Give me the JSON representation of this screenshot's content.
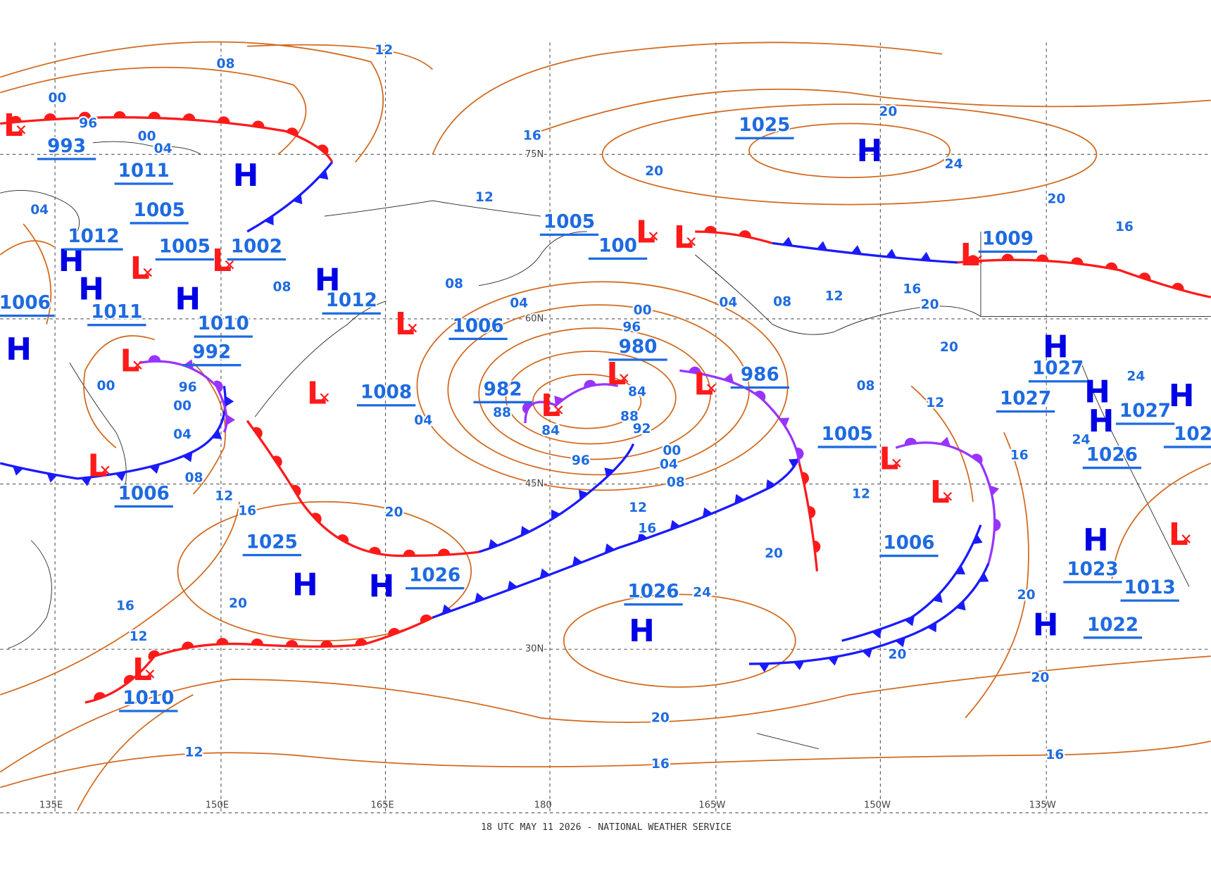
{
  "footer": "18 UTC MAY 11 2026 - NATIONAL WEATHER SERVICE",
  "longitude_labels": [
    "135E",
    "150E",
    "165E",
    "180",
    "165W",
    "150W",
    "135W"
  ],
  "latitude_labels": [
    "75N",
    "60N",
    "45N",
    "30N"
  ],
  "high_symbol": "H",
  "low_symbol": "L",
  "pressure_values": [
    "993",
    "1011",
    "1005",
    "1012",
    "1005",
    "1002",
    "1006",
    "1011",
    "1010",
    "992",
    "1012",
    "1006",
    "1008",
    "982",
    "980",
    "986",
    "1005",
    "100",
    "1009",
    "1025",
    "1027",
    "1027",
    "1027",
    "1026",
    "1005",
    "1006",
    "1023",
    "1013",
    "1022",
    "1026",
    "1026",
    "1025",
    "1006",
    "1010",
    "102"
  ],
  "isobar_labels": [
    "00",
    "08",
    "12",
    "96",
    "00",
    "04",
    "04",
    "16",
    "20",
    "24",
    "20",
    "20",
    "12",
    "08",
    "04",
    "00",
    "96",
    "88",
    "84",
    "84",
    "88",
    "92",
    "96",
    "00",
    "04",
    "08",
    "12",
    "16",
    "20",
    "24",
    "20",
    "16",
    "12",
    "20",
    "16",
    "12",
    "12",
    "20",
    "16",
    "16",
    "20",
    "20",
    "20",
    "16",
    "12",
    "12",
    "08",
    "16",
    "20",
    "20",
    "12",
    "08",
    "04",
    "96",
    "00",
    "04",
    "08",
    "00",
    "04",
    "08",
    "16",
    "24",
    "24"
  ]
}
